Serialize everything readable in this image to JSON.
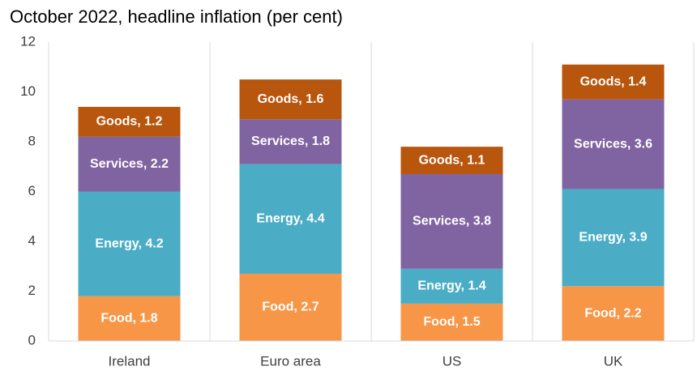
{
  "chart_data": {
    "type": "stacked_bar",
    "title": "October 2022, headline inflation (per cent)",
    "categories": [
      "Ireland",
      "Euro area",
      "US",
      "UK"
    ],
    "series": [
      {
        "name": "Food",
        "color": "#f79646",
        "values": [
          1.8,
          2.7,
          1.5,
          2.2
        ],
        "value_labels": [
          "Food, 1.8",
          "Food, 2.7",
          "Food, 1.5",
          "Food, 2.2"
        ]
      },
      {
        "name": "Energy",
        "color": "#4bacc6",
        "values": [
          4.2,
          4.4,
          1.4,
          3.9
        ],
        "value_labels": [
          "Energy, 4.2",
          "Energy, 4.4",
          "Energy, 1.4",
          "Energy, 3.9"
        ]
      },
      {
        "name": "Services",
        "color": "#8064a2",
        "values": [
          2.2,
          1.8,
          3.8,
          3.6
        ],
        "value_labels": [
          "Services, 2.2",
          "Services, 1.8",
          "Services, 3.8",
          "Services, 3.6"
        ]
      },
      {
        "name": "Goods",
        "color": "#b8560e",
        "values": [
          1.2,
          1.6,
          1.1,
          1.4
        ],
        "value_labels": [
          "Goods, 1.2",
          "Goods, 1.6",
          "Goods, 1.1",
          "Goods, 1.4"
        ]
      }
    ],
    "ylim": [
      0,
      12
    ],
    "yticks": [
      0,
      2,
      4,
      6,
      8,
      10,
      12
    ],
    "grid": "vertical"
  }
}
